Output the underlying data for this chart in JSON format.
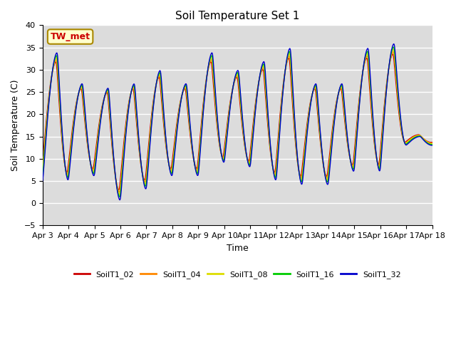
{
  "title": "Soil Temperature Set 1",
  "xlabel": "Time",
  "ylabel": "Soil Temperature (C)",
  "ylim": [
    -5,
    40
  ],
  "background_color": "#dcdcdc",
  "grid_color": "white",
  "annotation_text": "TW_met",
  "annotation_color": "#cc0000",
  "annotation_bg": "#ffffcc",
  "annotation_border": "#aa8800",
  "series": [
    "SoilT1_02",
    "SoilT1_04",
    "SoilT1_08",
    "SoilT1_16",
    "SoilT1_32"
  ],
  "colors": [
    "#cc0000",
    "#ff8800",
    "#dddd00",
    "#00cc00",
    "#0000cc"
  ],
  "x_tick_labels": [
    "Apr 3",
    "Apr 4",
    "Apr 5",
    "Apr 6",
    "Apr 7",
    "Apr 8",
    "Apr 9",
    "Apr 10",
    "Apr 11",
    "Apr 12",
    "Apr 13",
    "Apr 14",
    "Apr 15",
    "Apr 16",
    "Apr 17",
    "Apr 18"
  ],
  "num_days": 15,
  "num_points": 1441
}
